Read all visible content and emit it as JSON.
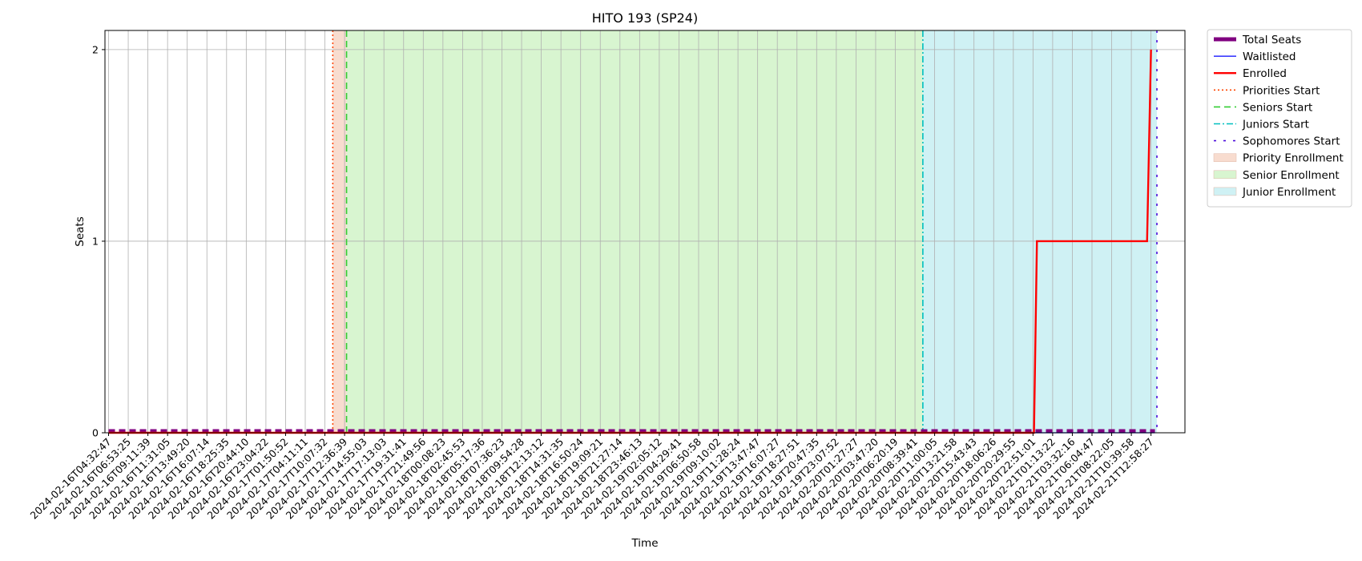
{
  "chart_data": {
    "type": "line",
    "title": "HITO 193 (SP24)",
    "xlabel": "Time",
    "ylabel": "Seats",
    "ylim": [
      0,
      2.1
    ],
    "y_ticks": [
      0,
      1,
      2
    ],
    "grid": true,
    "legend_placement": "outside-top-right",
    "x_ticks": [
      "2024-02-16T04:32:47",
      "2024-02-16T06:53:25",
      "2024-02-16T09:11:39",
      "2024-02-16T11:31:05",
      "2024-02-16T13:49:20",
      "2024-02-16T16:07:14",
      "2024-02-16T18:25:35",
      "2024-02-16T20:44:10",
      "2024-02-16T23:04:22",
      "2024-02-17T01:50:52",
      "2024-02-17T04:11:11",
      "2024-02-17T10:07:32",
      "2024-02-17T12:36:39",
      "2024-02-17T14:55:03",
      "2024-02-17T17:13:03",
      "2024-02-17T19:31:41",
      "2024-02-17T21:49:56",
      "2024-02-18T00:08:23",
      "2024-02-18T02:45:53",
      "2024-02-18T05:17:36",
      "2024-02-18T07:36:23",
      "2024-02-18T09:54:28",
      "2024-02-18T12:13:12",
      "2024-02-18T14:31:35",
      "2024-02-18T16:50:24",
      "2024-02-18T19:09:21",
      "2024-02-18T21:27:14",
      "2024-02-18T23:46:13",
      "2024-02-19T02:05:12",
      "2024-02-19T04:29:41",
      "2024-02-19T06:50:58",
      "2024-02-19T09:10:02",
      "2024-02-19T11:28:24",
      "2024-02-19T13:47:47",
      "2024-02-19T16:07:27",
      "2024-02-19T18:27:51",
      "2024-02-19T20:47:35",
      "2024-02-19T23:07:52",
      "2024-02-20T01:27:27",
      "2024-02-20T03:47:20",
      "2024-02-20T06:20:19",
      "2024-02-20T08:39:41",
      "2024-02-20T11:00:05",
      "2024-02-20T13:21:58",
      "2024-02-20T15:43:43",
      "2024-02-20T18:06:26",
      "2024-02-20T20:29:55",
      "2024-02-20T22:51:01",
      "2024-02-21T01:13:22",
      "2024-02-21T03:32:16",
      "2024-02-21T06:04:47",
      "2024-02-21T08:22:05",
      "2024-02-21T10:39:58",
      "2024-02-21T12:58:27"
    ],
    "series": [
      {
        "name": "Total Seats",
        "color": "#800080",
        "style": "dashed",
        "points": [
          [
            0,
            0
          ],
          [
            53.2,
            0
          ]
        ]
      },
      {
        "name": "Waitlisted",
        "color": "#0000ff",
        "style": "solid",
        "points": [
          [
            0,
            0
          ],
          [
            53.2,
            0
          ]
        ]
      },
      {
        "name": "Enrolled",
        "color": "#ff0000",
        "style": "solid",
        "points": [
          [
            0,
            0
          ],
          [
            47.05,
            0
          ],
          [
            47.2,
            1
          ],
          [
            52.8,
            1
          ],
          [
            53.0,
            2
          ]
        ]
      }
    ],
    "markers": [
      {
        "name": "Priorities Start",
        "color": "#ff4500",
        "style": "dotted",
        "x": 11.4
      },
      {
        "name": "Seniors Start",
        "color": "#32cd32",
        "style": "dashed",
        "x": 12.1
      },
      {
        "name": "Juniors Start",
        "color": "#00bfbf",
        "style": "dashdot",
        "x": 41.4
      },
      {
        "name": "Sophomores Start",
        "color": "#4b0bdb",
        "style": "loosedash",
        "x": 53.3
      }
    ],
    "spans": [
      {
        "name": "Priority Enrollment",
        "color": "#f8dccf",
        "from": 11.4,
        "to": 12.1
      },
      {
        "name": "Senior Enrollment",
        "color": "#d8f5d0",
        "from": 12.1,
        "to": 41.4
      },
      {
        "name": "Junior Enrollment",
        "color": "#cff1f4",
        "from": 41.4,
        "to": 53.3
      }
    ]
  }
}
